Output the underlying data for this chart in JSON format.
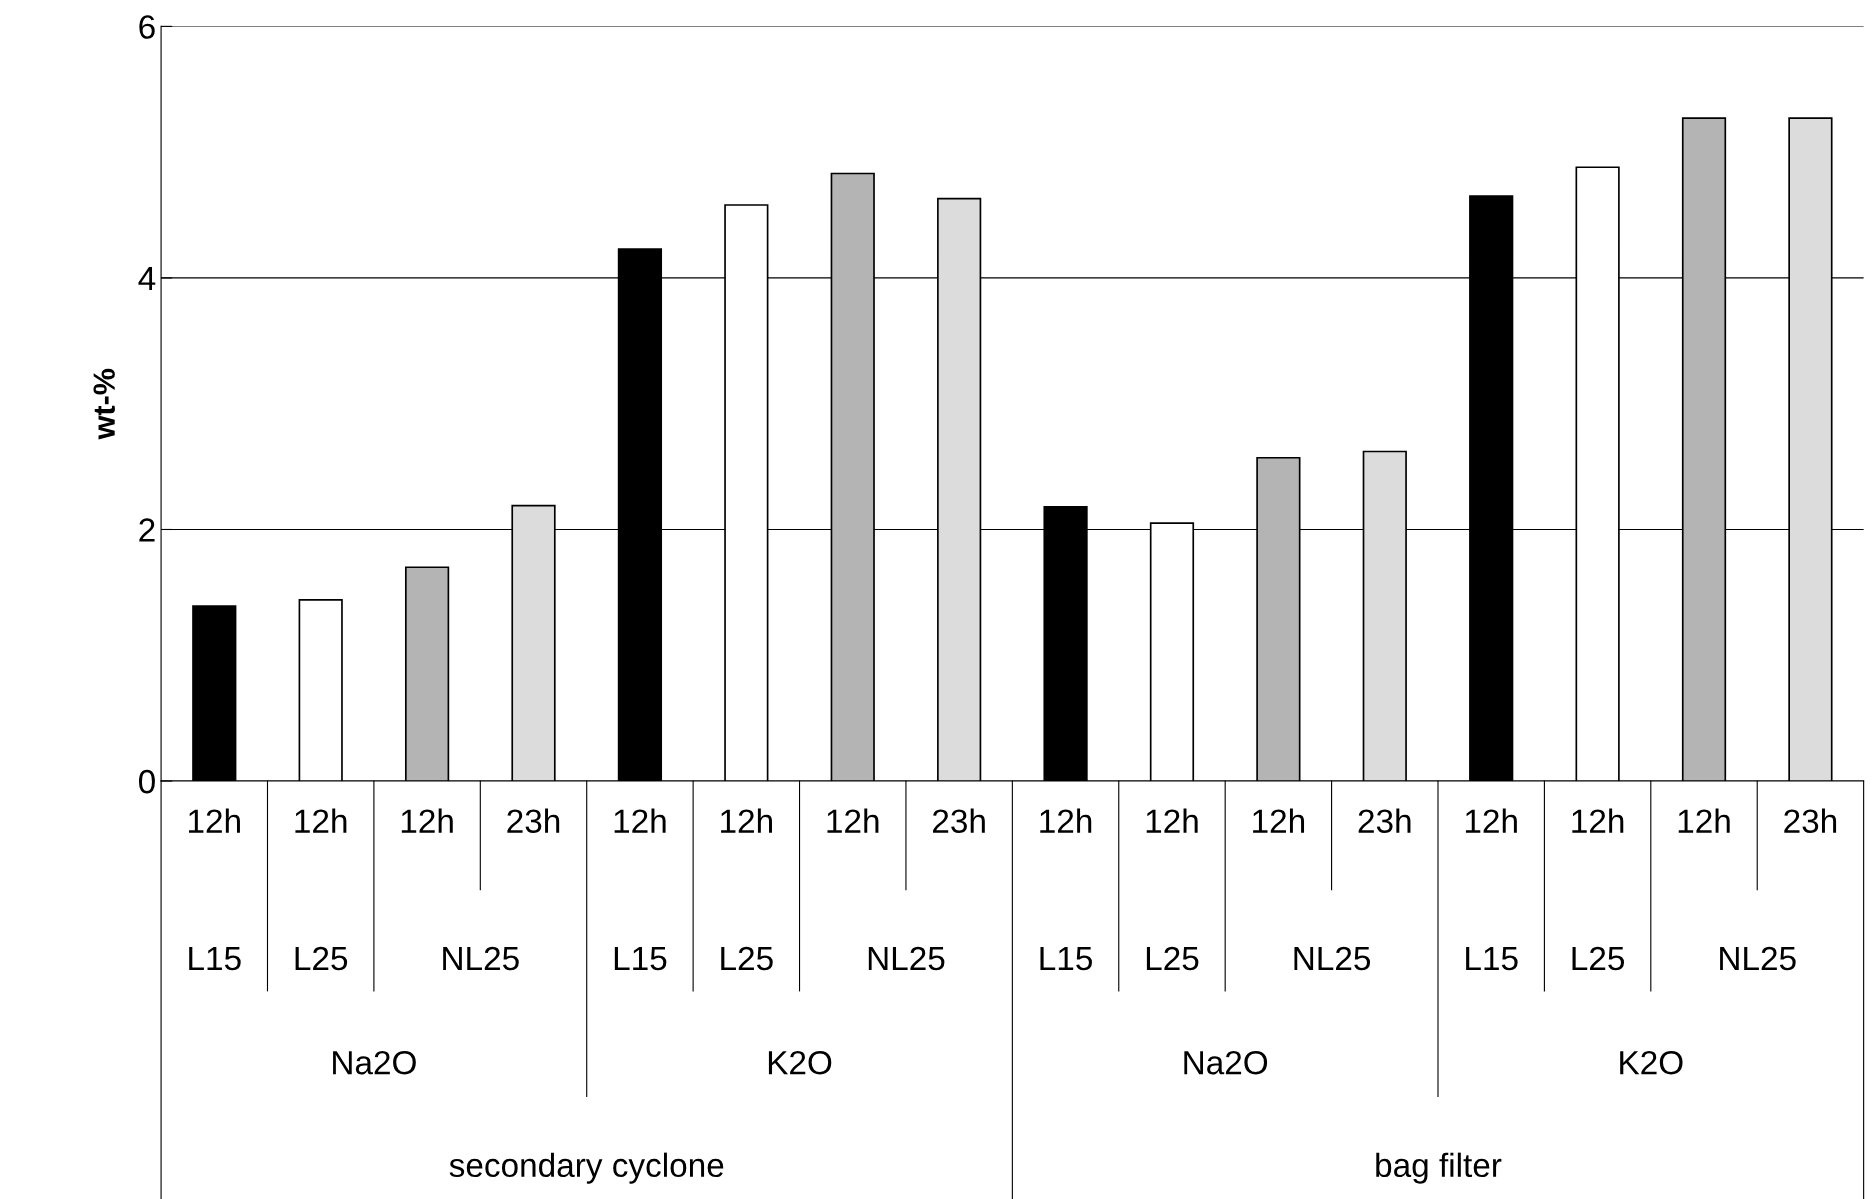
{
  "chart_data": {
    "type": "bar",
    "ylabel": "wt-%",
    "categories": [
      "12h",
      "12h",
      "12h",
      "23h",
      "12h",
      "12h",
      "12h",
      "23h",
      "12h",
      "12h",
      "12h",
      "23h",
      "12h",
      "12h",
      "12h",
      "23h"
    ],
    "values": [
      1.39,
      1.44,
      1.7,
      2.19,
      4.23,
      4.58,
      4.83,
      4.63,
      2.18,
      2.05,
      2.57,
      2.62,
      4.65,
      4.88,
      5.27,
      5.27
    ],
    "colors": [
      "#000000",
      "#ffffff",
      "#b4b4b4",
      "#dcdcdc",
      "#000000",
      "#ffffff",
      "#b4b4b4",
      "#dcdcdc",
      "#000000",
      "#ffffff",
      "#b4b4b4",
      "#dcdcdc",
      "#000000",
      "#ffffff",
      "#b4b4b4",
      "#dcdcdc"
    ],
    "ylim": [
      0,
      6
    ],
    "yticks": [
      0,
      2,
      4,
      6
    ],
    "grid": "y",
    "legend": false,
    "annotations": [
      "L15",
      "L25",
      "NL25",
      "L15",
      "L25",
      "NL25",
      "L15",
      "L25",
      "NL25",
      "L15",
      "L25",
      "NL25",
      "Na2O",
      "K2O",
      "Na2O",
      "K2O",
      "secondary cyclone",
      "bag filter"
    ]
  }
}
